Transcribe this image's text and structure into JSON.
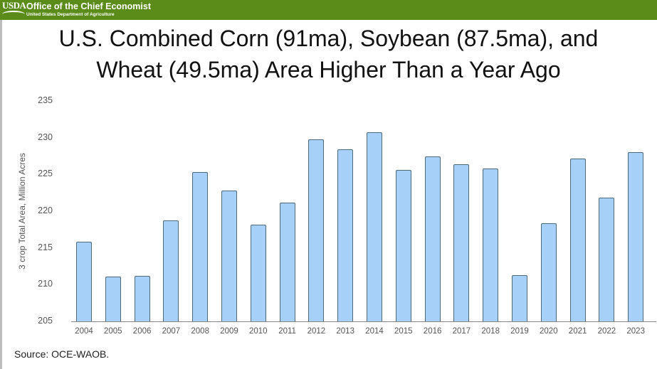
{
  "header": {
    "logo": "USDA",
    "title": "Office of the Chief Economist",
    "subtitle": "United States Department of Agriculture",
    "color": "#5b8c1a"
  },
  "title_line1": "U.S. Combined Corn (91ma), Soybean (87.5ma), and",
  "title_line2": "Wheat (49.5ma) Area Higher Than a Year Ago",
  "source": "Source: OCE-WAOB.",
  "chart_data": {
    "type": "bar",
    "title": "U.S. Combined Corn (91ma), Soybean (87.5ma), and Wheat (49.5ma) Area Higher Than a Year Ago",
    "xlabel": "",
    "ylabel": "3 crop Total Area, Million Acres",
    "ylim": [
      205,
      235
    ],
    "yticks": [
      205,
      210,
      215,
      220,
      225,
      230,
      235
    ],
    "grid": false,
    "legend": "none",
    "bar_color": "#a6d0f7",
    "categories": [
      "2004",
      "2005",
      "2006",
      "2007",
      "2008",
      "2009",
      "2010",
      "2011",
      "2012",
      "2013",
      "2014",
      "2015",
      "2016",
      "2017",
      "2018",
      "2019",
      "2020",
      "2021",
      "2022",
      "2023"
    ],
    "values": [
      215.8,
      211.1,
      211.2,
      218.7,
      225.3,
      222.8,
      218.2,
      221.2,
      229.8,
      228.4,
      230.7,
      225.6,
      227.5,
      226.4,
      225.8,
      211.3,
      218.4,
      227.2,
      221.8,
      228.0
    ]
  }
}
